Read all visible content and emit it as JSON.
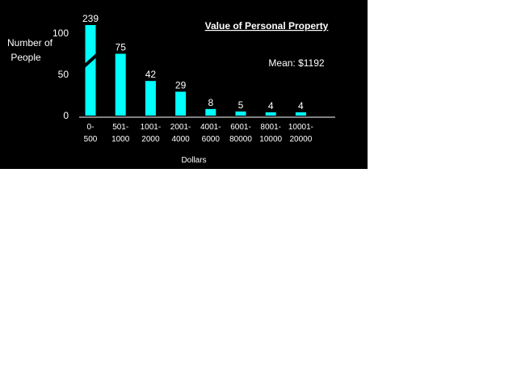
{
  "colors": {
    "background": "#000000",
    "bar": "#00ffff",
    "text": "#ffffff",
    "page": "#ffffff"
  },
  "chart_data": {
    "type": "bar",
    "title": "Value of Personal Property",
    "annotation": "Mean: $1192",
    "xlabel": "Dollars",
    "ylabel": [
      "Number of",
      "People"
    ],
    "ylim": [
      0,
      100
    ],
    "yticks": [
      0,
      50,
      100
    ],
    "axis_break": true,
    "grid": false,
    "legend": "none",
    "categories": [
      [
        "0-",
        "500"
      ],
      [
        "501-",
        "1000"
      ],
      [
        "1001-",
        "2000"
      ],
      [
        "2001-",
        "4000"
      ],
      [
        "4001-",
        "6000"
      ],
      [
        "6001-",
        "80000"
      ],
      [
        "8001-",
        "10000"
      ],
      [
        "10001-",
        "20000"
      ]
    ],
    "values": [
      239,
      75,
      42,
      29,
      8,
      5,
      4,
      4
    ]
  }
}
